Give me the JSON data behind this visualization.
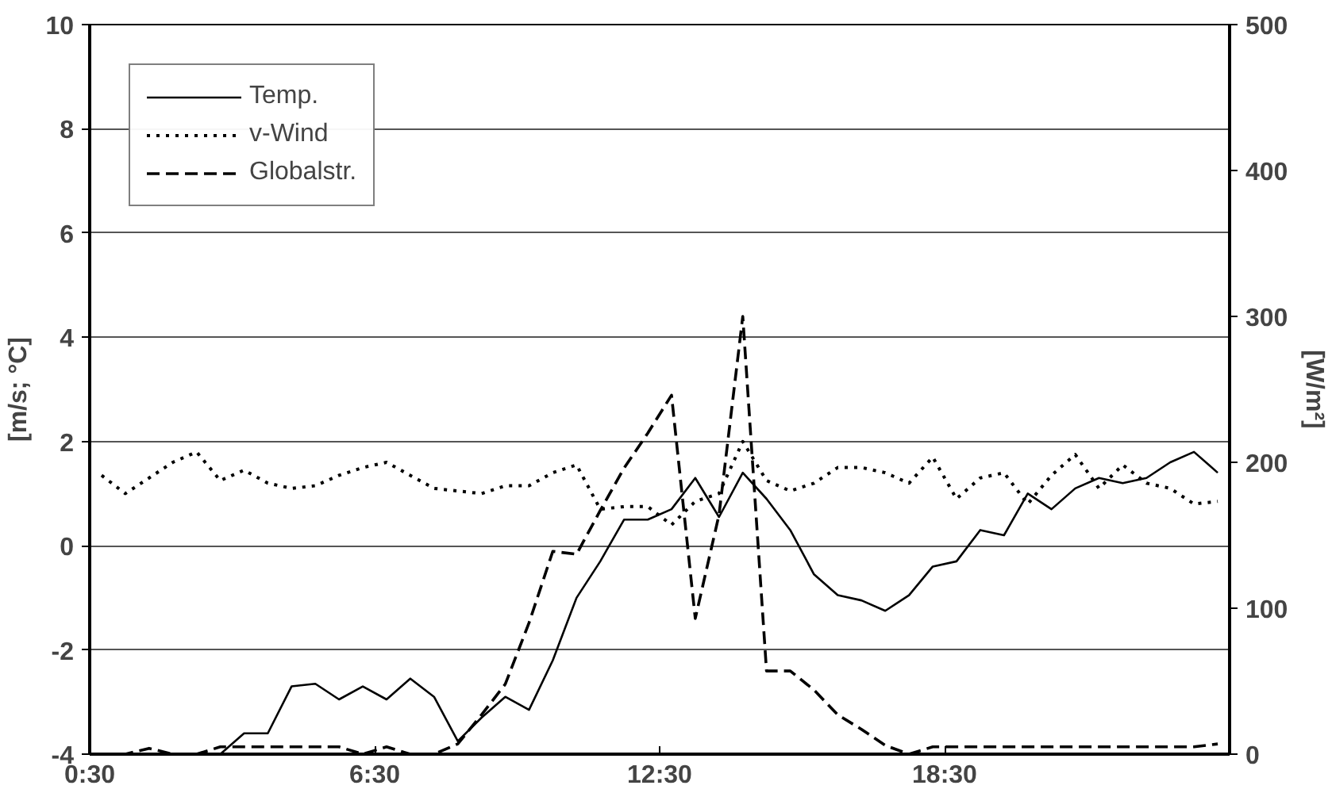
{
  "chart_data": {
    "type": "line",
    "ylabel": "[m/s; °C]",
    "y2label": "[W/m²]",
    "x": [
      0.75,
      1.25,
      1.75,
      2.25,
      2.75,
      3.25,
      3.75,
      4.25,
      4.75,
      5.25,
      5.75,
      6.25,
      6.75,
      7.25,
      7.75,
      8.25,
      8.75,
      9.25,
      9.75,
      10.25,
      10.75,
      11.25,
      11.75,
      12.25,
      12.75,
      13.25,
      13.75,
      14.25,
      14.75,
      15.25,
      15.75,
      16.25,
      16.75,
      17.25,
      17.75,
      18.25,
      18.75,
      19.25,
      19.75,
      20.25,
      20.75,
      21.25,
      21.75,
      22.25,
      22.75,
      23.25,
      23.75,
      24.25
    ],
    "series": [
      {
        "name": "Temp.",
        "color": "#000000",
        "line_style": "solid",
        "values": [
          -4,
          -4,
          -4,
          -4,
          -4,
          -4,
          -3.6,
          -3.6,
          -2.7,
          -2.65,
          -2.95,
          -2.7,
          -2.95,
          -2.55,
          -2.9,
          -3.75,
          -3.3,
          -2.9,
          -3.15,
          -2.2,
          -1.0,
          -0.3,
          0.5,
          0.5,
          0.7,
          1.3,
          0.55,
          1.4,
          0.9,
          0.3,
          -0.55,
          -0.95,
          -1.05,
          -1.25,
          -0.95,
          -0.4,
          -0.3,
          0.3,
          0.2,
          1.0,
          0.7,
          1.1,
          1.3,
          1.2,
          1.3,
          1.6,
          1.8,
          1.4
        ]
      },
      {
        "name": "v-Wind",
        "color": "#000000",
        "line_style": "dotted",
        "values": [
          1.35,
          1.0,
          1.3,
          1.6,
          1.8,
          1.25,
          1.45,
          1.2,
          1.1,
          1.15,
          1.35,
          1.5,
          1.6,
          1.35,
          1.1,
          1.05,
          1.0,
          1.15,
          1.15,
          1.4,
          1.55,
          0.7,
          0.75,
          0.75,
          0.4,
          0.85,
          1.0,
          2.0,
          1.25,
          1.05,
          1.2,
          1.5,
          1.5,
          1.4,
          1.2,
          1.7,
          0.9,
          1.3,
          1.4,
          0.8,
          1.35,
          1.75,
          1.1,
          1.55,
          1.2,
          1.1,
          0.8,
          0.85
        ]
      },
      {
        "name": "Globalstr.",
        "color": "#000000",
        "line_style": "dashed",
        "axis": "y2",
        "values": [
          0,
          0,
          4,
          0,
          0,
          5,
          5,
          5,
          5,
          5,
          5,
          0,
          5,
          0,
          0,
          7,
          27,
          48,
          90,
          139,
          137,
          167,
          196,
          220,
          246,
          93,
          164,
          300,
          57,
          57,
          44,
          27,
          17,
          6,
          0,
          5,
          5,
          5,
          5,
          5,
          5,
          5,
          5,
          5,
          5,
          5,
          5,
          7
        ]
      }
    ],
    "xlim": [
      0.5,
      24.5
    ],
    "xticks": [
      {
        "value": 0.5,
        "label": "0:30"
      },
      {
        "value": 6.5,
        "label": "6:30"
      },
      {
        "value": 12.5,
        "label": "12:30"
      },
      {
        "value": 18.5,
        "label": "18:30"
      },
      {
        "value": 24.5,
        "label": null
      }
    ],
    "ylim": [
      -4,
      10
    ],
    "yticks": [
      -4,
      -2,
      0,
      2,
      4,
      6,
      8,
      10
    ],
    "y2lim": [
      0,
      500
    ],
    "y2ticks": [
      0,
      100,
      200,
      300,
      400,
      500
    ],
    "grid": "y",
    "legend": "top left"
  }
}
